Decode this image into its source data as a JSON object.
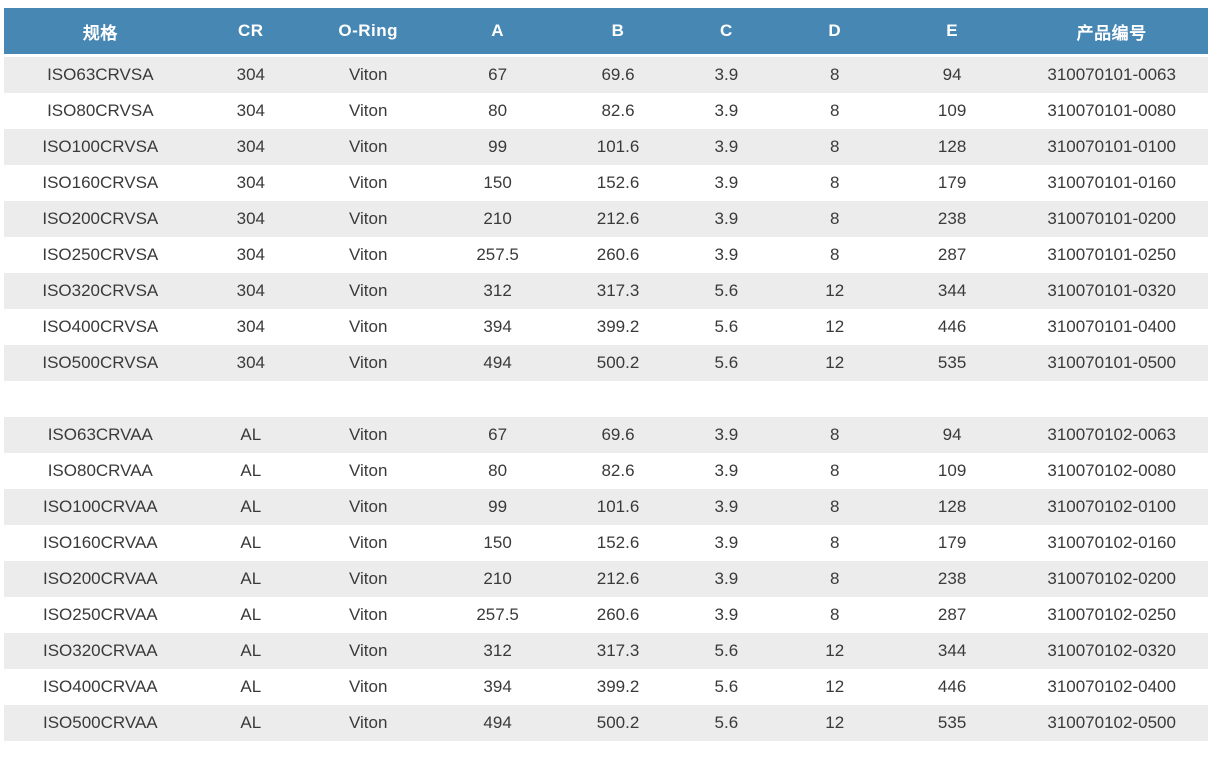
{
  "colors": {
    "header_bg": "#4787b4",
    "header_text": "#ffffff",
    "row_alt": "#ececec",
    "row_bg": "#ffffff",
    "cell_text": "#3a3a3a"
  },
  "table": {
    "columns": [
      {
        "key": "spec",
        "label": "规格"
      },
      {
        "key": "cr",
        "label": "CR"
      },
      {
        "key": "oring",
        "label": "O-Ring"
      },
      {
        "key": "a",
        "label": "A"
      },
      {
        "key": "b",
        "label": "B"
      },
      {
        "key": "c",
        "label": "C"
      },
      {
        "key": "d",
        "label": "D"
      },
      {
        "key": "e",
        "label": "E"
      },
      {
        "key": "pn",
        "label": "产品编号"
      }
    ],
    "groups": [
      {
        "rows": [
          [
            "ISO63CRVSA",
            "304",
            "Viton",
            "67",
            "69.6",
            "3.9",
            "8",
            "94",
            "310070101-0063"
          ],
          [
            "ISO80CRVSA",
            "304",
            "Viton",
            "80",
            "82.6",
            "3.9",
            "8",
            "109",
            "310070101-0080"
          ],
          [
            "ISO100CRVSA",
            "304",
            "Viton",
            "99",
            "101.6",
            "3.9",
            "8",
            "128",
            "310070101-0100"
          ],
          [
            "ISO160CRVSA",
            "304",
            "Viton",
            "150",
            "152.6",
            "3.9",
            "8",
            "179",
            "310070101-0160"
          ],
          [
            "ISO200CRVSA",
            "304",
            "Viton",
            "210",
            "212.6",
            "3.9",
            "8",
            "238",
            "310070101-0200"
          ],
          [
            "ISO250CRVSA",
            "304",
            "Viton",
            "257.5",
            "260.6",
            "3.9",
            "8",
            "287",
            "310070101-0250"
          ],
          [
            "ISO320CRVSA",
            "304",
            "Viton",
            "312",
            "317.3",
            "5.6",
            "12",
            "344",
            "310070101-0320"
          ],
          [
            "ISO400CRVSA",
            "304",
            "Viton",
            "394",
            "399.2",
            "5.6",
            "12",
            "446",
            "310070101-0400"
          ],
          [
            "ISO500CRVSA",
            "304",
            "Viton",
            "494",
            "500.2",
            "5.6",
            "12",
            "535",
            "310070101-0500"
          ]
        ]
      },
      {
        "rows": [
          [
            "ISO63CRVAA",
            "AL",
            "Viton",
            "67",
            "69.6",
            "3.9",
            "8",
            "94",
            "310070102-0063"
          ],
          [
            "ISO80CRVAA",
            "AL",
            "Viton",
            "80",
            "82.6",
            "3.9",
            "8",
            "109",
            "310070102-0080"
          ],
          [
            "ISO100CRVAA",
            "AL",
            "Viton",
            "99",
            "101.6",
            "3.9",
            "8",
            "128",
            "310070102-0100"
          ],
          [
            "ISO160CRVAA",
            "AL",
            "Viton",
            "150",
            "152.6",
            "3.9",
            "8",
            "179",
            "310070102-0160"
          ],
          [
            "ISO200CRVAA",
            "AL",
            "Viton",
            "210",
            "212.6",
            "3.9",
            "8",
            "238",
            "310070102-0200"
          ],
          [
            "ISO250CRVAA",
            "AL",
            "Viton",
            "257.5",
            "260.6",
            "3.9",
            "8",
            "287",
            "310070102-0250"
          ],
          [
            "ISO320CRVAA",
            "AL",
            "Viton",
            "312",
            "317.3",
            "5.6",
            "12",
            "344",
            "310070102-0320"
          ],
          [
            "ISO400CRVAA",
            "AL",
            "Viton",
            "394",
            "399.2",
            "5.6",
            "12",
            "446",
            "310070102-0400"
          ],
          [
            "ISO500CRVAA",
            "AL",
            "Viton",
            "494",
            "500.2",
            "5.6",
            "12",
            "535",
            "310070102-0500"
          ]
        ]
      }
    ]
  }
}
